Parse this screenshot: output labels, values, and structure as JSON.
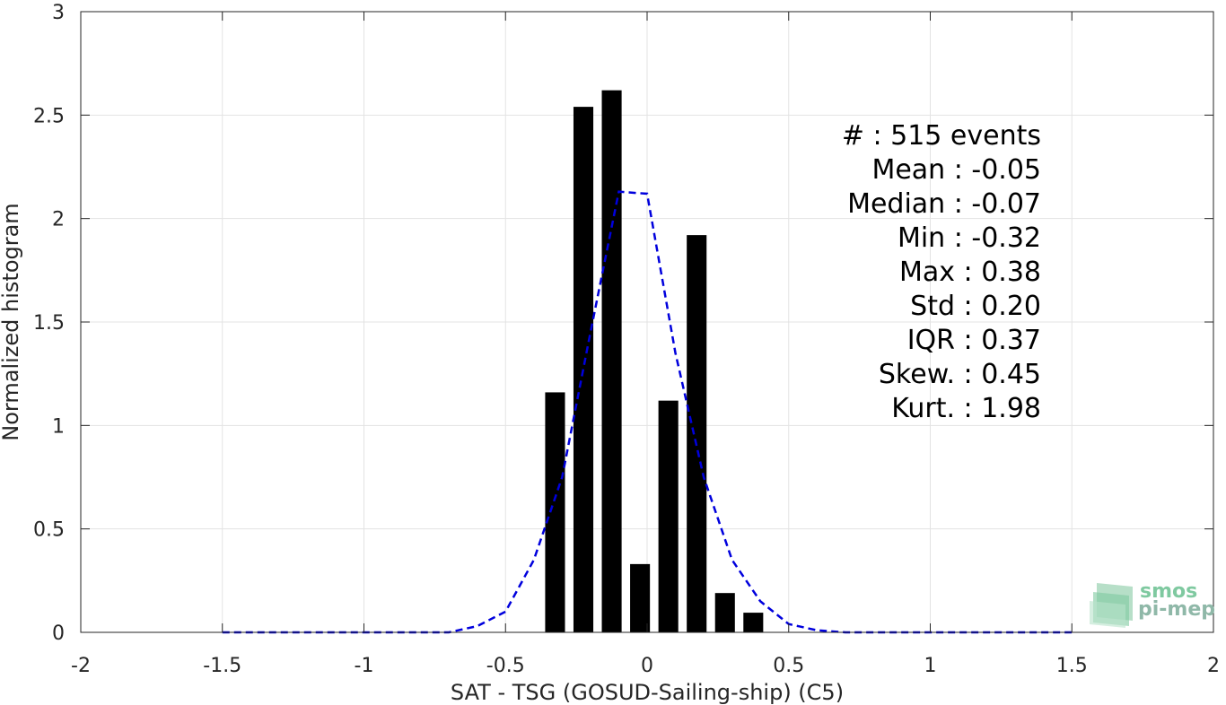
{
  "chart_data": {
    "type": "bar",
    "xlabel": "SAT - TSG (GOSUD-Sailing-ship) (C5)",
    "ylabel": "Normalized histogram",
    "xlim": [
      -2,
      2
    ],
    "ylim": [
      0,
      3
    ],
    "xticks": [
      -2,
      -1.5,
      -1,
      -0.5,
      0,
      0.5,
      1,
      1.5,
      2
    ],
    "xtick_labels": [
      "-2",
      "-1.5",
      "-1",
      "-0.5",
      "0",
      "0.5",
      "1",
      "1.5",
      "2"
    ],
    "yticks": [
      0,
      0.5,
      1,
      1.5,
      2,
      2.5,
      3
    ],
    "ytick_labels": [
      "0",
      "0.5",
      "1",
      "1.5",
      "2",
      "2.5",
      "3"
    ],
    "grid": true,
    "bar_color": "#000000",
    "bars": {
      "centers": [
        -0.325,
        -0.225,
        -0.125,
        -0.025,
        0.075,
        0.175,
        0.275,
        0.375
      ],
      "width": 0.07,
      "values": [
        1.16,
        2.54,
        2.62,
        0.33,
        1.12,
        1.92,
        0.19,
        0.095
      ]
    },
    "fit_line": {
      "style": "dashed",
      "color": "#0000dd",
      "x": [
        -1.5,
        -1.4,
        -1.3,
        -1.2,
        -1.1,
        -1.0,
        -0.9,
        -0.8,
        -0.7,
        -0.6,
        -0.5,
        -0.4,
        -0.3,
        -0.2,
        -0.1,
        0.0,
        0.1,
        0.2,
        0.3,
        0.4,
        0.5,
        0.6,
        0.7,
        0.8,
        0.9,
        1.0,
        1.1,
        1.2,
        1.3,
        1.4,
        1.5
      ],
      "y": [
        0.0,
        0.0,
        0.0,
        0.0,
        0.0,
        0.0,
        0.0,
        0.0,
        0.0,
        0.03,
        0.1,
        0.35,
        0.75,
        1.45,
        2.13,
        2.12,
        1.35,
        0.75,
        0.35,
        0.15,
        0.04,
        0.01,
        0.0,
        0.0,
        0.0,
        0.0,
        0.0,
        0.0,
        0.0,
        0.0,
        0.0
      ]
    },
    "annotation_lines": [
      "#  : 515 events",
      "Mean : -0.05",
      "Median : -0.07",
      "Min : -0.32",
      "Max : 0.38",
      "Std : 0.20",
      "IQR : 0.37",
      "Skew. : 0.45",
      "Kurt. : 1.98"
    ]
  },
  "logo": {
    "line1": "smos",
    "line2": "pi-mep",
    "color1": "#7fc9a0",
    "color2": "#8fb8a8"
  }
}
